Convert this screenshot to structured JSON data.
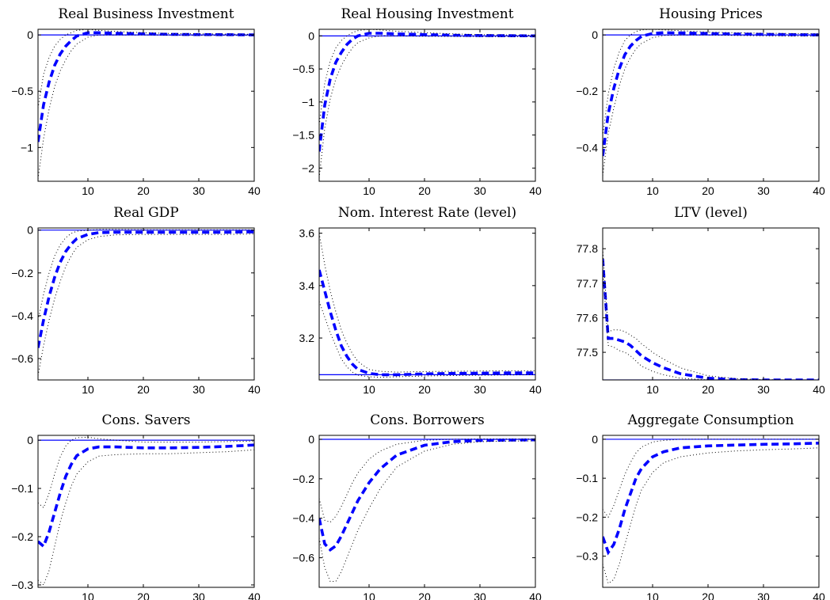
{
  "chart_data": [
    {
      "type": "line",
      "title": "Real Business Investment",
      "xlim": [
        1,
        40
      ],
      "ylim": [
        -1.3,
        0.05
      ],
      "xticks": [
        10,
        20,
        30,
        40
      ],
      "xtick_labels": [
        "10",
        "20",
        "30",
        "40"
      ],
      "yticks": [
        -1,
        -0.5,
        0
      ],
      "ytick_labels": [
        "−1",
        "−0.5",
        "0"
      ],
      "baseline": 0,
      "x": [
        1,
        2,
        3,
        4,
        5,
        6,
        7,
        8,
        10,
        12,
        15,
        20,
        25,
        30,
        35,
        40
      ],
      "series": [
        {
          "role": "mean",
          "values": [
            -0.95,
            -0.62,
            -0.42,
            -0.27,
            -0.17,
            -0.1,
            -0.05,
            -0.01,
            0.02,
            0.02,
            0.015,
            0.01,
            0.005,
            0.003,
            0.002,
            0.0
          ]
        },
        {
          "role": "upper",
          "values": [
            -0.65,
            -0.35,
            -0.2,
            -0.1,
            -0.04,
            0.0,
            0.02,
            0.04,
            0.05,
            0.04,
            0.03,
            0.02,
            0.012,
            0.01,
            0.008,
            0.005
          ]
        },
        {
          "role": "lower",
          "values": [
            -1.28,
            -0.92,
            -0.66,
            -0.46,
            -0.32,
            -0.22,
            -0.14,
            -0.08,
            -0.02,
            0.0,
            0.0,
            0.0,
            -0.002,
            -0.004,
            -0.005,
            -0.005
          ]
        }
      ]
    },
    {
      "type": "line",
      "title": "Real Housing Investment",
      "xlim": [
        1,
        40
      ],
      "ylim": [
        -2.2,
        0.1
      ],
      "xticks": [
        10,
        20,
        30,
        40
      ],
      "xtick_labels": [
        "10",
        "20",
        "30",
        "40"
      ],
      "yticks": [
        -2,
        -1.5,
        -1,
        -0.5,
        0
      ],
      "ytick_labels": [
        "−2",
        "−1.5",
        "−1",
        "−0.5",
        "0"
      ],
      "baseline": 0,
      "x": [
        1,
        2,
        3,
        4,
        5,
        6,
        7,
        8,
        10,
        12,
        15,
        20,
        25,
        30,
        35,
        40
      ],
      "series": [
        {
          "role": "mean",
          "values": [
            -1.75,
            -1.05,
            -0.65,
            -0.4,
            -0.25,
            -0.13,
            -0.05,
            0.0,
            0.04,
            0.04,
            0.03,
            0.02,
            0.01,
            0.005,
            0.003,
            0.0
          ]
        },
        {
          "role": "upper",
          "values": [
            -1.35,
            -0.72,
            -0.38,
            -0.18,
            -0.07,
            0.0,
            0.05,
            0.08,
            0.1,
            0.09,
            0.07,
            0.05,
            0.03,
            0.02,
            0.015,
            0.01
          ]
        },
        {
          "role": "lower",
          "values": [
            -2.15,
            -1.4,
            -0.95,
            -0.65,
            -0.45,
            -0.3,
            -0.18,
            -0.1,
            -0.03,
            0.0,
            0.0,
            -0.005,
            -0.008,
            -0.01,
            -0.01,
            -0.01
          ]
        }
      ]
    },
    {
      "type": "line",
      "title": "Housing Prices",
      "xlim": [
        1,
        40
      ],
      "ylim": [
        -0.52,
        0.02
      ],
      "xticks": [
        10,
        20,
        30,
        40
      ],
      "xtick_labels": [
        "10",
        "20",
        "30",
        "40"
      ],
      "yticks": [
        -0.4,
        -0.2,
        0
      ],
      "ytick_labels": [
        "−0.4",
        "−0.2",
        "0"
      ],
      "baseline": 0,
      "x": [
        1,
        2,
        3,
        4,
        5,
        6,
        7,
        8,
        10,
        12,
        15,
        20,
        25,
        30,
        35,
        40
      ],
      "series": [
        {
          "role": "mean",
          "values": [
            -0.43,
            -0.28,
            -0.19,
            -0.12,
            -0.07,
            -0.04,
            -0.02,
            -0.005,
            0.005,
            0.008,
            0.007,
            0.005,
            0.003,
            0.002,
            0.001,
            0.0
          ]
        },
        {
          "role": "upper",
          "values": [
            -0.36,
            -0.21,
            -0.12,
            -0.06,
            -0.02,
            0.0,
            0.012,
            0.018,
            0.02,
            0.018,
            0.015,
            0.01,
            0.008,
            0.006,
            0.005,
            0.004
          ]
        },
        {
          "role": "lower",
          "values": [
            -0.5,
            -0.35,
            -0.26,
            -0.18,
            -0.12,
            -0.08,
            -0.05,
            -0.03,
            -0.01,
            -0.002,
            0.0,
            0.0,
            -0.002,
            -0.003,
            -0.004,
            -0.004
          ]
        }
      ]
    },
    {
      "type": "line",
      "title": "Real GDP",
      "xlim": [
        1,
        40
      ],
      "ylim": [
        -0.7,
        0.01
      ],
      "xticks": [
        10,
        20,
        30,
        40
      ],
      "xtick_labels": [
        "10",
        "20",
        "30",
        "40"
      ],
      "yticks": [
        -0.6,
        -0.4,
        -0.2,
        0
      ],
      "ytick_labels": [
        "−0.6",
        "−0.4",
        "−0.2",
        "0"
      ],
      "baseline": 0,
      "x": [
        1,
        2,
        3,
        4,
        5,
        6,
        7,
        8,
        10,
        12,
        15,
        20,
        25,
        30,
        35,
        40
      ],
      "series": [
        {
          "role": "mean",
          "values": [
            -0.55,
            -0.42,
            -0.31,
            -0.22,
            -0.15,
            -0.1,
            -0.065,
            -0.04,
            -0.02,
            -0.012,
            -0.01,
            -0.01,
            -0.01,
            -0.01,
            -0.01,
            -0.008
          ]
        },
        {
          "role": "upper",
          "values": [
            -0.42,
            -0.3,
            -0.2,
            -0.12,
            -0.07,
            -0.035,
            -0.015,
            -0.005,
            0.0,
            0.003,
            0.003,
            0.002,
            0.002,
            0.002,
            0.002,
            0.002
          ]
        },
        {
          "role": "lower",
          "values": [
            -0.68,
            -0.54,
            -0.42,
            -0.32,
            -0.24,
            -0.17,
            -0.12,
            -0.08,
            -0.045,
            -0.03,
            -0.022,
            -0.02,
            -0.02,
            -0.02,
            -0.02,
            -0.018
          ]
        }
      ]
    },
    {
      "type": "line",
      "title": "Nom. Interest Rate (level)",
      "xlim": [
        1,
        40
      ],
      "ylim": [
        3.04,
        3.62
      ],
      "xticks": [
        10,
        20,
        30,
        40
      ],
      "xtick_labels": [
        "10",
        "20",
        "30",
        "40"
      ],
      "yticks": [
        3.2,
        3.4,
        3.6
      ],
      "ytick_labels": [
        "3.2",
        "3.4",
        "3.6"
      ],
      "baseline": 3.06,
      "x": [
        1,
        2,
        3,
        4,
        5,
        6,
        7,
        8,
        10,
        12,
        15,
        20,
        25,
        30,
        35,
        40
      ],
      "series": [
        {
          "role": "mean",
          "values": [
            3.46,
            3.38,
            3.3,
            3.23,
            3.17,
            3.13,
            3.1,
            3.08,
            3.065,
            3.06,
            3.06,
            3.063,
            3.065,
            3.066,
            3.067,
            3.067
          ]
        },
        {
          "role": "upper",
          "values": [
            3.6,
            3.48,
            3.38,
            3.3,
            3.23,
            3.18,
            3.14,
            3.11,
            3.08,
            3.073,
            3.07,
            3.072,
            3.073,
            3.074,
            3.075,
            3.075
          ]
        },
        {
          "role": "lower",
          "values": [
            3.34,
            3.28,
            3.22,
            3.17,
            3.12,
            3.09,
            3.07,
            3.058,
            3.052,
            3.05,
            3.052,
            3.055,
            3.057,
            3.058,
            3.059,
            3.06
          ]
        }
      ]
    },
    {
      "type": "line",
      "title": "LTV (level)",
      "xlim": [
        1,
        40
      ],
      "ylim": [
        77.42,
        77.86
      ],
      "xticks": [
        10,
        20,
        30,
        40
      ],
      "xtick_labels": [
        "10",
        "20",
        "30",
        "40"
      ],
      "yticks": [
        77.5,
        77.6,
        77.7,
        77.8
      ],
      "ytick_labels": [
        "77.5",
        "77.6",
        "77.7",
        "77.8"
      ],
      "baseline": 77.42,
      "x": [
        1,
        2,
        3,
        4,
        5,
        6,
        7,
        8,
        10,
        12,
        15,
        20,
        25,
        30,
        35,
        40
      ],
      "series": [
        {
          "role": "mean",
          "values": [
            77.77,
            77.54,
            77.54,
            77.535,
            77.53,
            77.52,
            77.505,
            77.49,
            77.47,
            77.455,
            77.438,
            77.425,
            77.421,
            77.42,
            77.42,
            77.42
          ]
        },
        {
          "role": "upper",
          "values": [
            77.8,
            77.56,
            77.565,
            77.565,
            77.56,
            77.55,
            77.54,
            77.525,
            77.5,
            77.48,
            77.455,
            77.432,
            77.424,
            77.421,
            77.42,
            77.42
          ]
        },
        {
          "role": "lower",
          "values": [
            77.74,
            77.52,
            77.515,
            77.505,
            77.5,
            77.49,
            77.475,
            77.46,
            77.445,
            77.435,
            77.425,
            77.42,
            77.42,
            77.42,
            77.42,
            77.42
          ]
        }
      ]
    },
    {
      "type": "line",
      "title": "Cons. Savers",
      "xlim": [
        1,
        40
      ],
      "ylim": [
        -0.305,
        0.01
      ],
      "xticks": [
        10,
        20,
        30,
        40
      ],
      "xtick_labels": [
        "10",
        "20",
        "30",
        "40"
      ],
      "yticks": [
        -0.3,
        -0.2,
        -0.1,
        0
      ],
      "ytick_labels": [
        "−0.3",
        "−0.2",
        "−0.1",
        "0"
      ],
      "baseline": 0,
      "x": [
        1,
        2,
        3,
        4,
        5,
        6,
        7,
        8,
        10,
        12,
        15,
        20,
        25,
        30,
        35,
        40
      ],
      "series": [
        {
          "role": "mean",
          "values": [
            -0.21,
            -0.22,
            -0.19,
            -0.15,
            -0.11,
            -0.075,
            -0.05,
            -0.032,
            -0.018,
            -0.014,
            -0.014,
            -0.016,
            -0.016,
            -0.015,
            -0.013,
            -0.01
          ]
        },
        {
          "role": "upper",
          "values": [
            -0.13,
            -0.14,
            -0.11,
            -0.07,
            -0.035,
            -0.012,
            0.0,
            0.005,
            0.006,
            0.003,
            0.0,
            -0.004,
            -0.004,
            -0.004,
            -0.003,
            -0.002
          ]
        },
        {
          "role": "lower",
          "values": [
            -0.29,
            -0.3,
            -0.27,
            -0.22,
            -0.17,
            -0.13,
            -0.095,
            -0.07,
            -0.045,
            -0.033,
            -0.03,
            -0.028,
            -0.028,
            -0.026,
            -0.024,
            -0.02
          ]
        }
      ]
    },
    {
      "type": "line",
      "title": "Cons. Borrowers",
      "xlim": [
        1,
        40
      ],
      "ylim": [
        -0.75,
        0.02
      ],
      "xticks": [
        10,
        20,
        30,
        40
      ],
      "xtick_labels": [
        "10",
        "20",
        "30",
        "40"
      ],
      "yticks": [
        -0.6,
        -0.4,
        -0.2,
        0
      ],
      "ytick_labels": [
        "−0.6",
        "−0.4",
        "−0.2",
        "0"
      ],
      "baseline": 0,
      "x": [
        1,
        2,
        3,
        4,
        5,
        6,
        7,
        8,
        10,
        12,
        15,
        20,
        25,
        30,
        35,
        40
      ],
      "series": [
        {
          "role": "mean",
          "values": [
            -0.4,
            -0.53,
            -0.56,
            -0.54,
            -0.49,
            -0.43,
            -0.37,
            -0.31,
            -0.22,
            -0.15,
            -0.08,
            -0.03,
            -0.012,
            -0.006,
            -0.004,
            -0.003
          ]
        },
        {
          "role": "upper",
          "values": [
            -0.3,
            -0.41,
            -0.42,
            -0.39,
            -0.34,
            -0.28,
            -0.22,
            -0.17,
            -0.1,
            -0.06,
            -0.025,
            -0.005,
            0.0,
            0.002,
            0.002,
            0.002
          ]
        },
        {
          "role": "lower",
          "values": [
            -0.5,
            -0.65,
            -0.72,
            -0.72,
            -0.67,
            -0.6,
            -0.53,
            -0.46,
            -0.35,
            -0.25,
            -0.14,
            -0.06,
            -0.025,
            -0.012,
            -0.009,
            -0.008
          ]
        }
      ]
    },
    {
      "type": "line",
      "title": "Aggregate Consumption",
      "xlim": [
        1,
        40
      ],
      "ylim": [
        -0.38,
        0.01
      ],
      "xticks": [
        10,
        20,
        30,
        40
      ],
      "xtick_labels": [
        "10",
        "20",
        "30",
        "40"
      ],
      "yticks": [
        -0.3,
        -0.2,
        -0.1,
        0
      ],
      "ytick_labels": [
        "−0.3",
        "−0.2",
        "−0.1",
        "0"
      ],
      "baseline": 0,
      "x": [
        1,
        2,
        3,
        4,
        5,
        6,
        7,
        8,
        10,
        12,
        15,
        20,
        25,
        30,
        35,
        40
      ],
      "series": [
        {
          "role": "mean",
          "values": [
            -0.25,
            -0.29,
            -0.27,
            -0.23,
            -0.18,
            -0.14,
            -0.1,
            -0.075,
            -0.045,
            -0.032,
            -0.022,
            -0.017,
            -0.015,
            -0.013,
            -0.012,
            -0.01
          ]
        },
        {
          "role": "upper",
          "values": [
            -0.18,
            -0.2,
            -0.17,
            -0.13,
            -0.09,
            -0.06,
            -0.035,
            -0.02,
            -0.007,
            -0.003,
            0.0,
            0.0,
            0.0,
            0.0,
            0.0,
            0.0
          ]
        },
        {
          "role": "lower",
          "values": [
            -0.32,
            -0.37,
            -0.36,
            -0.32,
            -0.27,
            -0.22,
            -0.17,
            -0.13,
            -0.085,
            -0.06,
            -0.045,
            -0.035,
            -0.03,
            -0.027,
            -0.025,
            -0.022
          ]
        }
      ]
    }
  ],
  "colors": {
    "mean_line": "#0000ff",
    "baseline": "#0000ff",
    "band_line": "#000000",
    "axes": "#000000",
    "background": "#ffffff"
  }
}
